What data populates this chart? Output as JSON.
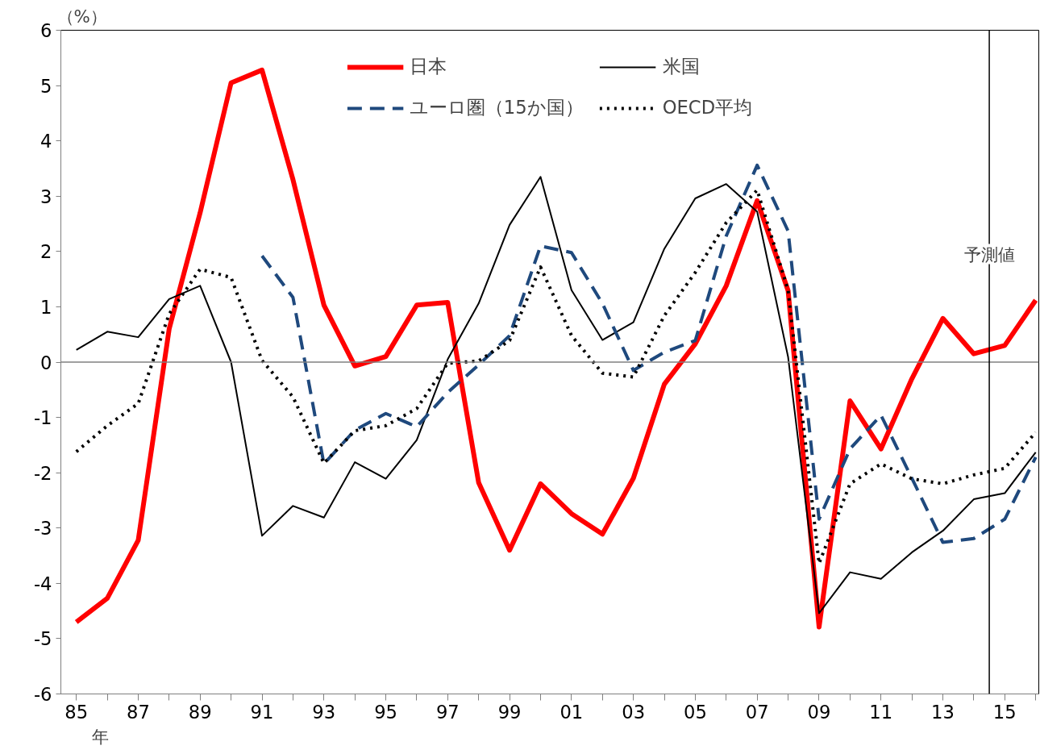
{
  "chart_data": {
    "type": "line",
    "xlabel": "年",
    "ylabel": "（%）",
    "x": [
      1985,
      1986,
      1987,
      1988,
      1989,
      1990,
      1991,
      1992,
      1993,
      1994,
      1995,
      1996,
      1997,
      1998,
      1999,
      2000,
      2001,
      2002,
      2003,
      2004,
      2005,
      2006,
      2007,
      2008,
      2009,
      2010,
      2011,
      2012,
      2013,
      2014,
      2015,
      2016
    ],
    "series": [
      {
        "name": "日本",
        "color": "#ff0000",
        "line_style": "solid",
        "values": [
          -4.7,
          -4.27,
          -3.22,
          0.6,
          2.7,
          5.05,
          5.28,
          3.3,
          1.03,
          -0.07,
          0.1,
          1.03,
          1.08,
          -2.18,
          -3.4,
          -2.2,
          -2.74,
          -3.11,
          -2.1,
          -0.4,
          0.33,
          1.38,
          2.92,
          1.29,
          -4.79,
          -0.7,
          -1.57,
          -0.3,
          0.79,
          0.15,
          0.3,
          1.12
        ]
      },
      {
        "name": "米国",
        "color": "#000000",
        "line_style": "solid",
        "values": [
          0.22,
          0.55,
          0.45,
          1.14,
          1.38,
          0.0,
          -3.14,
          -2.6,
          -2.81,
          -1.81,
          -2.11,
          -1.41,
          0.05,
          1.06,
          2.48,
          3.35,
          1.3,
          0.4,
          0.72,
          2.05,
          2.96,
          3.22,
          2.72,
          0.09,
          -4.54,
          -3.8,
          -3.92,
          -3.44,
          -3.05,
          -2.48,
          -2.37,
          -1.63
        ]
      },
      {
        "name": "ユーロ圏（15か国）",
        "color": "#1f497d",
        "line_style": "dashed",
        "values": [
          null,
          null,
          null,
          null,
          null,
          null,
          1.92,
          1.17,
          -1.84,
          -1.23,
          -0.93,
          -1.17,
          -0.55,
          -0.05,
          0.48,
          2.1,
          1.98,
          1.06,
          -0.15,
          0.18,
          0.39,
          2.28,
          3.56,
          2.37,
          -2.84,
          -1.57,
          -0.96,
          -2.1,
          -3.26,
          -3.19,
          -2.84,
          -1.72
        ]
      },
      {
        "name": "OECD平均",
        "color": "#000000",
        "line_style": "dotted",
        "values": [
          -1.62,
          -1.15,
          -0.75,
          0.87,
          1.68,
          1.53,
          0.03,
          -0.63,
          -1.83,
          -1.24,
          -1.15,
          -0.84,
          -0.02,
          0.02,
          0.39,
          1.72,
          0.48,
          -0.2,
          -0.27,
          0.84,
          1.62,
          2.52,
          3.11,
          1.3,
          -3.64,
          -2.2,
          -1.84,
          -2.11,
          -2.2,
          -2.04,
          -1.92,
          -1.27
        ]
      }
    ],
    "xlim": [
      1984.5,
      2016.1
    ],
    "xticks": [
      {
        "value": 1985,
        "label": "85"
      },
      {
        "value": 1986,
        "label": null
      },
      {
        "value": 1987,
        "label": "87"
      },
      {
        "value": 1988,
        "label": null
      },
      {
        "value": 1989,
        "label": "89"
      },
      {
        "value": 1990,
        "label": null
      },
      {
        "value": 1991,
        "label": "91"
      },
      {
        "value": 1992,
        "label": null
      },
      {
        "value": 1993,
        "label": "93"
      },
      {
        "value": 1994,
        "label": null
      },
      {
        "value": 1995,
        "label": "95"
      },
      {
        "value": 1996,
        "label": null
      },
      {
        "value": 1997,
        "label": "97"
      },
      {
        "value": 1998,
        "label": null
      },
      {
        "value": 1999,
        "label": "99"
      },
      {
        "value": 2000,
        "label": null
      },
      {
        "value": 2001,
        "label": "01"
      },
      {
        "value": 2002,
        "label": null
      },
      {
        "value": 2003,
        "label": "03"
      },
      {
        "value": 2004,
        "label": null
      },
      {
        "value": 2005,
        "label": "05"
      },
      {
        "value": 2006,
        "label": null
      },
      {
        "value": 2007,
        "label": "07"
      },
      {
        "value": 2008,
        "label": null
      },
      {
        "value": 2009,
        "label": "09"
      },
      {
        "value": 2010,
        "label": null
      },
      {
        "value": 2011,
        "label": "11"
      },
      {
        "value": 2012,
        "label": null
      },
      {
        "value": 2013,
        "label": "13"
      },
      {
        "value": 2014,
        "label": null
      },
      {
        "value": 2015,
        "label": "15"
      },
      {
        "value": 2016,
        "label": null
      }
    ],
    "ylim": [
      -6,
      6
    ],
    "yticks": [
      -6,
      -5,
      -4,
      -3,
      -2,
      -1,
      0,
      1,
      2,
      3,
      4,
      5,
      6
    ],
    "ref_lines": [
      {
        "axis": "y",
        "value": 0,
        "label": null,
        "color": "#808080"
      },
      {
        "axis": "x",
        "value": 2014.5,
        "label": "予測値",
        "color": "#000000"
      }
    ],
    "grid": false,
    "legend": "top",
    "marker": "none"
  }
}
